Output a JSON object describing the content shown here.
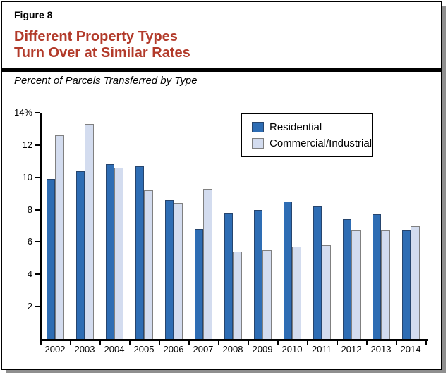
{
  "figure": {
    "label": "Figure 8",
    "title_line1": "Different Property Types",
    "title_line2": "Turn Over at Similar Rates",
    "title_color": "#B23A2A",
    "subtitle": "Percent of Parcels Transferred by Type"
  },
  "colors": {
    "frame_border": "#000000",
    "frame_shadow": "#8F8F8F",
    "axis": "#000000",
    "residential_fill": "#2E6DB4",
    "residential_border": "#26456E",
    "commercial_fill": "#D3DCEF",
    "commercial_border": "#808080"
  },
  "chart_data": {
    "type": "bar",
    "title": "Percent of Parcels Transferred by Type",
    "categories": [
      "2002",
      "2003",
      "2004",
      "2005",
      "2006",
      "2007",
      "2008",
      "2009",
      "2010",
      "2011",
      "2012",
      "2013",
      "2014"
    ],
    "series": [
      {
        "name": "Residential",
        "color": "#2E6DB4",
        "border_color": "#26456E",
        "values": [
          9.9,
          10.4,
          10.8,
          10.7,
          8.6,
          6.8,
          7.8,
          8.0,
          8.5,
          8.2,
          7.4,
          7.7,
          6.7
        ]
      },
      {
        "name": "Commercial/Industrial",
        "color": "#D3DCEF",
        "border_color": "#808080",
        "values": [
          12.6,
          13.3,
          10.6,
          9.2,
          8.4,
          9.3,
          5.4,
          5.5,
          5.7,
          5.8,
          6.7,
          6.7,
          7.0
        ]
      }
    ],
    "xlabel": "",
    "ylabel": "",
    "ylim": [
      0,
      14
    ],
    "yticks": [
      {
        "value": 14,
        "label": "14%"
      },
      {
        "value": 12,
        "label": "12"
      },
      {
        "value": 10,
        "label": "10"
      },
      {
        "value": 8,
        "label": "8"
      },
      {
        "value": 6,
        "label": "6"
      },
      {
        "value": 4,
        "label": "4"
      },
      {
        "value": 2,
        "label": "2"
      }
    ],
    "grid": false,
    "legend_position": "top-right"
  }
}
